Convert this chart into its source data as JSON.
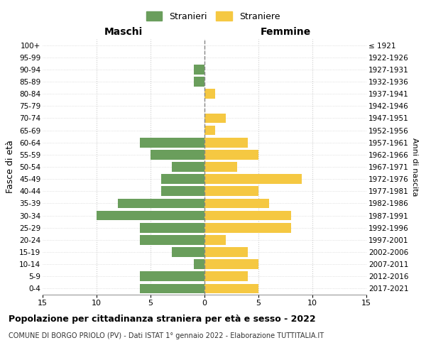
{
  "age_groups": [
    "100+",
    "95-99",
    "90-94",
    "85-89",
    "80-84",
    "75-79",
    "70-74",
    "65-69",
    "60-64",
    "55-59",
    "50-54",
    "45-49",
    "40-44",
    "35-39",
    "30-34",
    "25-29",
    "20-24",
    "15-19",
    "10-14",
    "5-9",
    "0-4"
  ],
  "birth_years": [
    "≤ 1921",
    "1922-1926",
    "1927-1931",
    "1932-1936",
    "1937-1941",
    "1942-1946",
    "1947-1951",
    "1952-1956",
    "1957-1961",
    "1962-1966",
    "1967-1971",
    "1972-1976",
    "1977-1981",
    "1982-1986",
    "1987-1991",
    "1992-1996",
    "1997-2001",
    "2002-2006",
    "2007-2011",
    "2012-2016",
    "2017-2021"
  ],
  "males": [
    0,
    0,
    1,
    1,
    0,
    0,
    0,
    0,
    6,
    5,
    3,
    4,
    4,
    8,
    10,
    6,
    6,
    3,
    1,
    6,
    6
  ],
  "females": [
    0,
    0,
    0,
    0,
    1,
    0,
    2,
    1,
    4,
    5,
    3,
    9,
    5,
    6,
    8,
    8,
    2,
    4,
    5,
    4,
    5
  ],
  "male_color": "#6a9e5c",
  "female_color": "#f5c842",
  "background_color": "#ffffff",
  "grid_color": "#cccccc",
  "center_line_color": "#888888",
  "title": "Popolazione per cittadinanza straniera per età e sesso - 2022",
  "subtitle": "COMUNE DI BORGO PRIOLO (PV) - Dati ISTAT 1° gennaio 2022 - Elaborazione TUTTITALIA.IT",
  "left_header": "Maschi",
  "right_header": "Femmine",
  "left_ylabel": "Fasce di età",
  "right_ylabel": "Anni di nascita",
  "legend_stranieri": "Stranieri",
  "legend_straniere": "Straniere",
  "xlim": 15
}
